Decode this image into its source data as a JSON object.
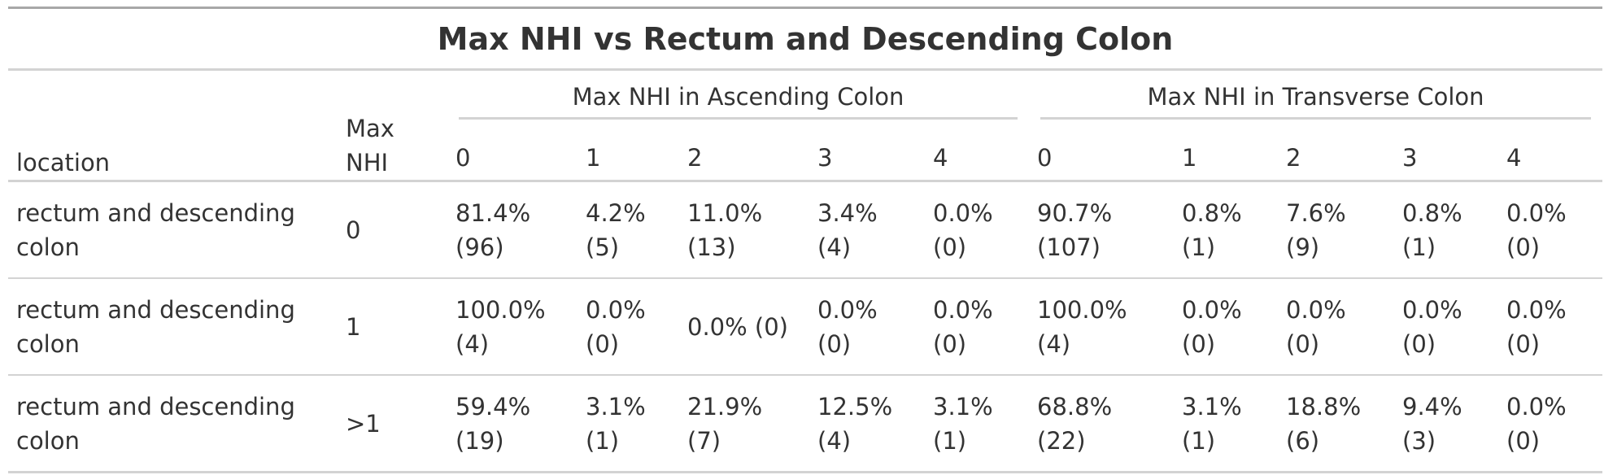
{
  "title": "Max NHI vs Rectum and Descending Colon",
  "header": {
    "stub_label": "location",
    "maxnhi_label_line1": "Max",
    "maxnhi_label_line2": "NHI",
    "spanners": [
      "Max NHI in Ascending Colon",
      "Max NHI in Transverse Colon"
    ],
    "ascending_cols": [
      "0",
      "1",
      "2",
      "3",
      "4"
    ],
    "transverse_cols": [
      "0",
      "1",
      "2",
      "3",
      "4"
    ]
  },
  "rows": [
    {
      "location": "rectum and descending colon",
      "max_nhi": "0",
      "ascending": [
        {
          "a": "81.4%",
          "b": "(96)"
        },
        {
          "a": "4.2%",
          "b": "(5)"
        },
        {
          "a": "11.0%",
          "b": "(13)"
        },
        {
          "a": "3.4% (4)",
          "b": ""
        },
        {
          "a": "0.0%",
          "b": "(0)"
        }
      ],
      "transverse": [
        {
          "a": "90.7%",
          "b": "(107)"
        },
        {
          "a": "0.8%",
          "b": "(1)"
        },
        {
          "a": "7.6% (9)",
          "b": ""
        },
        {
          "a": "0.8%",
          "b": "(1)"
        },
        {
          "a": "0.0%",
          "b": "(0)"
        }
      ]
    },
    {
      "location": "rectum and descending colon",
      "max_nhi": "1",
      "ascending": [
        {
          "a": "100.0%",
          "b": "(4)"
        },
        {
          "a": "0.0%",
          "b": "(0)"
        },
        {
          "a": "0.0% (0)",
          "b": ""
        },
        {
          "a": "0.0% (0)",
          "b": ""
        },
        {
          "a": "0.0%",
          "b": "(0)"
        }
      ],
      "transverse": [
        {
          "a": "100.0% (4)",
          "b": ""
        },
        {
          "a": "0.0%",
          "b": "(0)"
        },
        {
          "a": "0.0% (0)",
          "b": ""
        },
        {
          "a": "0.0%",
          "b": "(0)"
        },
        {
          "a": "0.0%",
          "b": "(0)"
        }
      ]
    },
    {
      "location": "rectum and descending colon",
      "max_nhi": ">1",
      "ascending": [
        {
          "a": "59.4%",
          "b": "(19)"
        },
        {
          "a": "3.1%",
          "b": "(1)"
        },
        {
          "a": "21.9% (7)",
          "b": ""
        },
        {
          "a": "12.5%",
          "b": "(4)"
        },
        {
          "a": "3.1%",
          "b": "(1)"
        }
      ],
      "transverse": [
        {
          "a": "68.8% (22)",
          "b": ""
        },
        {
          "a": "3.1%",
          "b": "(1)"
        },
        {
          "a": "18.8%",
          "b": "(6)"
        },
        {
          "a": "9.4%",
          "b": "(3)"
        },
        {
          "a": "0.0%",
          "b": "(0)"
        }
      ]
    }
  ]
}
